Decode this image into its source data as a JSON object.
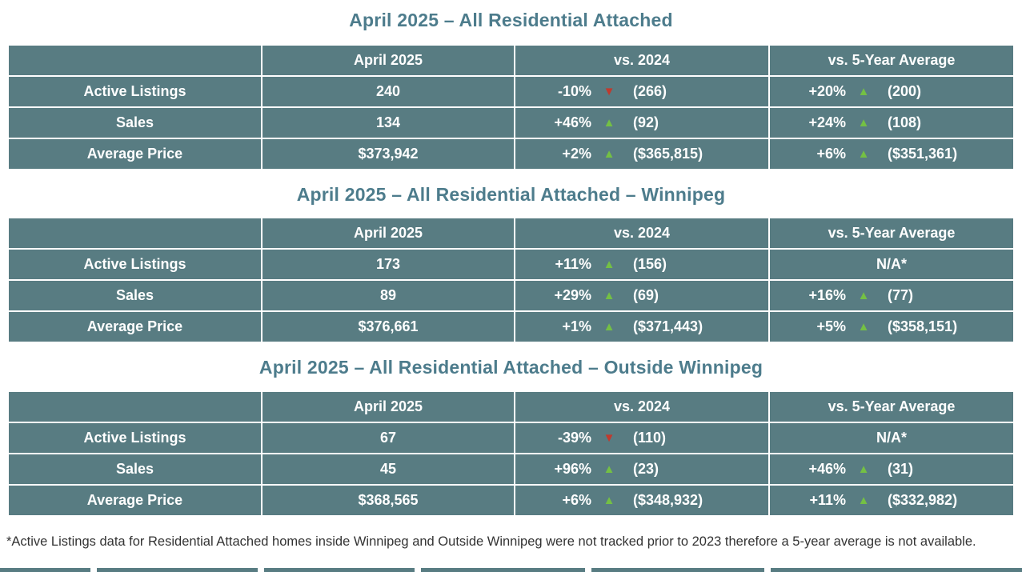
{
  "colors": {
    "table_bg": "#587C82",
    "title": "#4D7C8C",
    "up_arrow": "#74C044",
    "down_arrow": "#C03A2E"
  },
  "icons": {
    "up": {
      "name": "up-arrow-icon",
      "glyph": "▲",
      "color": "#74C044"
    },
    "down": {
      "name": "down-arrow-icon",
      "glyph": "▼",
      "color": "#C03A2E"
    }
  },
  "columns": {
    "metric": "",
    "april": "April 2025",
    "vs2024": "vs. 2024",
    "vs5yr": "vs. 5-Year Average"
  },
  "tables": [
    {
      "title": "April 2025 – All Residential Attached",
      "rows": [
        {
          "label": "Active Listings",
          "april": "240",
          "vs2024": {
            "pct": "-10%",
            "dir": "down",
            "value": "(266)"
          },
          "vs5yr": {
            "pct": "+20%",
            "dir": "up",
            "value": "(200)"
          }
        },
        {
          "label": "Sales",
          "april": "134",
          "vs2024": {
            "pct": "+46%",
            "dir": "up",
            "value": "(92)"
          },
          "vs5yr": {
            "pct": "+24%",
            "dir": "up",
            "value": "(108)"
          }
        },
        {
          "label": "Average Price",
          "april": "$373,942",
          "vs2024": {
            "pct": "+2%",
            "dir": "up",
            "value": "($365,815)"
          },
          "vs5yr": {
            "pct": "+6%",
            "dir": "up",
            "value": "($351,361)"
          }
        }
      ]
    },
    {
      "title": "April 2025 – All Residential Attached – Winnipeg",
      "rows": [
        {
          "label": "Active Listings",
          "april": "173",
          "vs2024": {
            "pct": "+11%",
            "dir": "up",
            "value": "(156)"
          },
          "vs5yr": {
            "na": "N/A*"
          }
        },
        {
          "label": "Sales",
          "april": "89",
          "vs2024": {
            "pct": "+29%",
            "dir": "up",
            "value": "(69)"
          },
          "vs5yr": {
            "pct": "+16%",
            "dir": "up",
            "value": "(77)"
          }
        },
        {
          "label": "Average Price",
          "april": "$376,661",
          "vs2024": {
            "pct": "+1%",
            "dir": "up",
            "value": "($371,443)"
          },
          "vs5yr": {
            "pct": "+5%",
            "dir": "up",
            "value": "($358,151)"
          }
        }
      ]
    },
    {
      "title": "April 2025 – All Residential Attached – Outside Winnipeg",
      "rows": [
        {
          "label": "Active Listings",
          "april": "67",
          "vs2024": {
            "pct": "-39%",
            "dir": "down",
            "value": "(110)"
          },
          "vs5yr": {
            "na": "N/A*"
          }
        },
        {
          "label": "Sales",
          "april": "45",
          "vs2024": {
            "pct": "+96%",
            "dir": "up",
            "value": "(23)"
          },
          "vs5yr": {
            "pct": "+46%",
            "dir": "up",
            "value": "(31)"
          }
        },
        {
          "label": "Average Price",
          "april": "$368,565",
          "vs2024": {
            "pct": "+6%",
            "dir": "up",
            "value": "($348,932)"
          },
          "vs5yr": {
            "pct": "+11%",
            "dir": "up",
            "value": "($332,982)"
          }
        }
      ]
    }
  ],
  "footnote": "*Active Listings data for Residential Attached homes inside Winnipeg and Outside Winnipeg were not tracked prior to 2023 therefore a 5-year average is not available."
}
